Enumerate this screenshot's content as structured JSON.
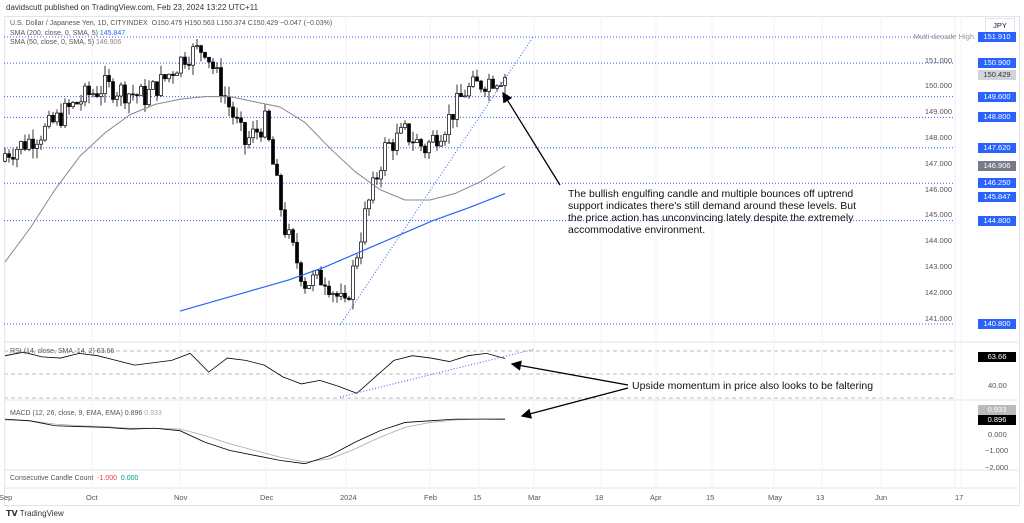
{
  "header": {
    "published": "davidscutt published on TradingView.com, Feb 23, 2024 13:22 UTC+11",
    "symbol": "U.S. Dollar / Japanese Yen, 1D, CITYINDEX",
    "ohlc": "O150.475  H150.563  L150.374  C150.429  −0.047 (−0.03%)",
    "sma200_label": "SMA (200, close, 0, SMA, 5)",
    "sma200_value": "145.847",
    "sma50_label": "SMA (50, close, 0, SMA, 5)",
    "sma50_value": "146.906"
  },
  "currency": "JPY",
  "price_axis": [
    "151.000",
    "150.000",
    "149.000",
    "148.000",
    "147.000",
    "146.000",
    "145.000",
    "144.000",
    "143.000",
    "142.000",
    "141.000"
  ],
  "levels": [
    {
      "value": 151.91,
      "label": "151.910",
      "note": "Multi-decade High"
    },
    {
      "value": 150.9,
      "label": "150.900"
    },
    {
      "value": 149.6,
      "label": "149.600"
    },
    {
      "value": 148.8,
      "label": "148.800"
    },
    {
      "value": 147.62,
      "label": "147.620"
    },
    {
      "value": 146.25,
      "label": "146.250"
    },
    {
      "value": 144.8,
      "label": "144.800"
    },
    {
      "value": 140.8,
      "label": "140.800"
    }
  ],
  "price_tags": {
    "last": "150.429",
    "sma50": "146.906",
    "sma200": "145.847"
  },
  "annotations": {
    "main": "The bullish engulfing candle and multiple bounces off uptrend support indicates there's still demand around these levels. But the price action has unconvincing lately despite the extremely accommodative environment.",
    "momentum": "Upside momentum in price also looks to be faltering"
  },
  "rsi": {
    "label": "RSI (14, close, SMA, 14, 2)",
    "value": "63.66",
    "axis": "40.00"
  },
  "macd": {
    "label": "MACD (12, 26, close, 9, EMA, EMA)",
    "macd": "0.896",
    "signal": "0.933",
    "axis": [
      "0.000",
      "−1.000",
      "−2.000"
    ]
  },
  "ccc": {
    "label": "Consecutive Candle Count",
    "v1": "-1.000",
    "v2": "0.000"
  },
  "time_axis": [
    "Sep",
    "Oct",
    "Nov",
    "Dec",
    "2024",
    "Feb",
    "15",
    "Mar",
    "18",
    "Apr",
    "15",
    "May",
    "13",
    "Jun",
    "17"
  ],
  "brand": "TradingView",
  "chart_data": {
    "type": "candlestick",
    "weekly_closes": [
      147.4,
      147.8,
      148.3,
      149.0,
      149.6,
      150.0,
      149.8,
      149.6,
      150.3,
      151.2,
      151.5,
      149.6,
      147.8,
      148.6,
      144.5,
      142.4,
      142.6,
      141.4,
      145.0,
      147.6,
      148.2,
      147.6,
      148.5,
      149.8,
      150.2,
      150.43
    ],
    "sma50": [
      143.2,
      144.5,
      146.0,
      147.3,
      148.2,
      148.9,
      149.3,
      149.5,
      149.6,
      149.6,
      149.4,
      149.2,
      148.6,
      147.6,
      146.7,
      146.0,
      145.6,
      145.6,
      145.85,
      146.3,
      146.906
    ],
    "sma200": [
      141.3,
      141.7,
      142.1,
      142.5,
      143.0,
      143.6,
      144.2,
      144.8,
      145.3,
      145.847
    ],
    "rsi": [
      66,
      69,
      65,
      64,
      68,
      66,
      62,
      58,
      60,
      62,
      68,
      52,
      64,
      62,
      58,
      48,
      42,
      45,
      40,
      34,
      48,
      62,
      66,
      64,
      61,
      66,
      68,
      63.66
    ],
    "macd": [
      0.9,
      0.8,
      0.5,
      0.45,
      0.4,
      0.3,
      0.35,
      0.2,
      -0.5,
      -1.0,
      -1.3,
      -1.6,
      -1.8,
      -1.3,
      -0.5,
      0.2,
      0.7,
      0.8,
      0.9,
      0.9,
      0.896
    ],
    "signal": [
      0.85,
      0.8,
      0.6,
      0.5,
      0.45,
      0.35,
      0.35,
      0.3,
      -0.1,
      -0.6,
      -1.0,
      -1.4,
      -1.7,
      -1.5,
      -0.9,
      -0.2,
      0.4,
      0.7,
      0.85,
      0.9,
      0.933
    ]
  }
}
